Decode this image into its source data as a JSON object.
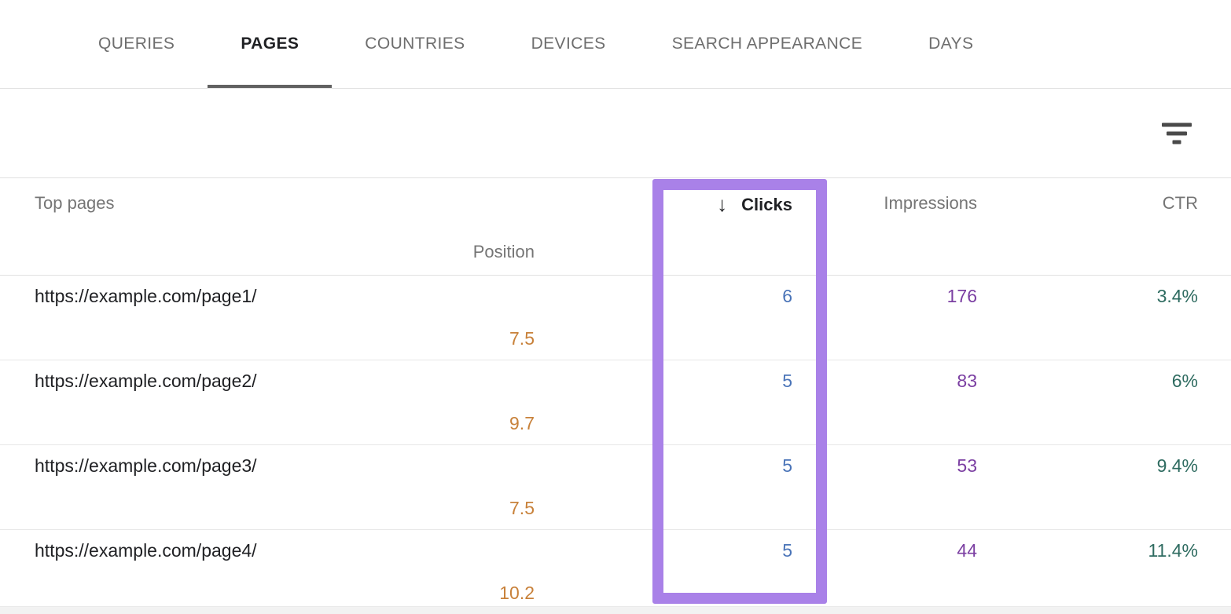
{
  "tabs": [
    {
      "label": "QUERIES",
      "active": false
    },
    {
      "label": "PAGES",
      "active": true
    },
    {
      "label": "COUNTRIES",
      "active": false
    },
    {
      "label": "DEVICES",
      "active": false
    },
    {
      "label": "SEARCH APPEARANCE",
      "active": false
    },
    {
      "label": "DAYS",
      "active": false
    }
  ],
  "toolbar": {
    "filter_icon": "filter-icon"
  },
  "table": {
    "header": {
      "top_pages": "Top pages",
      "sort_arrow": "↓",
      "clicks": "Clicks",
      "impressions": "Impressions",
      "ctr": "CTR",
      "position": "Position"
    },
    "rows": [
      {
        "page": "https://example.com/page1/",
        "clicks": "6",
        "impressions": "176",
        "ctr": "3.4%",
        "position": "7.5"
      },
      {
        "page": "https://example.com/page2/",
        "clicks": "5",
        "impressions": "83",
        "ctr": "6%",
        "position": "9.7"
      },
      {
        "page": "https://example.com/page3/",
        "clicks": "5",
        "impressions": "53",
        "ctr": "9.4%",
        "position": "7.5"
      },
      {
        "page": "https://example.com/page4/",
        "clicks": "5",
        "impressions": "44",
        "ctr": "11.4%",
        "position": "10.2"
      }
    ]
  },
  "highlight": {
    "target": "impressions-column",
    "color": "#a981e8"
  },
  "colors": {
    "clicks_value": "#4a74b8",
    "impressions_value": "#7b3fa2",
    "ctr_value": "#2e6b60",
    "position_value": "#c8813a",
    "active_tab_underline": "#616161",
    "inactive_tab_text": "#6e6e6e",
    "header_text": "#757575"
  }
}
